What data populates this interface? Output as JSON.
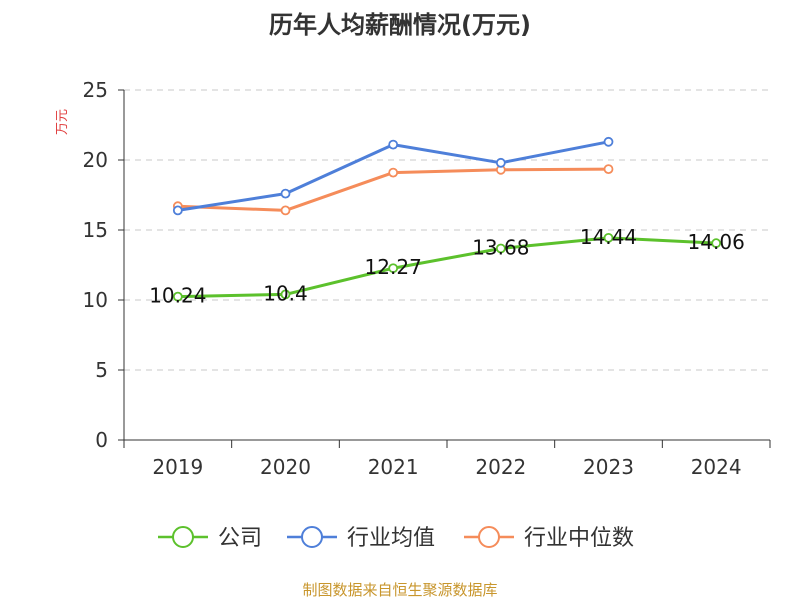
{
  "chart_data": {
    "type": "line",
    "title": "历年人均薪酬情况(万元)",
    "ylabel": "万元",
    "categories": [
      "2019",
      "2020",
      "2021",
      "2022",
      "2023",
      "2024"
    ],
    "ylim": [
      0,
      25
    ],
    "yticks": [
      "0",
      "5",
      "10",
      "15",
      "20",
      "25"
    ],
    "grid": true,
    "legend_position": "bottom",
    "series": [
      {
        "name": "公司",
        "color": "#5cc12c",
        "values": [
          10.24,
          10.4,
          12.27,
          13.68,
          14.44,
          14.06
        ],
        "labels": [
          "10.24",
          "10.4",
          "12.27",
          "13.68",
          "14.44",
          "14.06"
        ]
      },
      {
        "name": "行业均值",
        "color": "#4e7fd9",
        "values": [
          16.4,
          17.6,
          21.1,
          19.8,
          21.3,
          null
        ]
      },
      {
        "name": "行业中位数",
        "color": "#f58c5a",
        "values": [
          16.7,
          16.4,
          19.1,
          19.3,
          19.35,
          null
        ]
      }
    ],
    "source": "制图数据来自恒生聚源数据库"
  }
}
